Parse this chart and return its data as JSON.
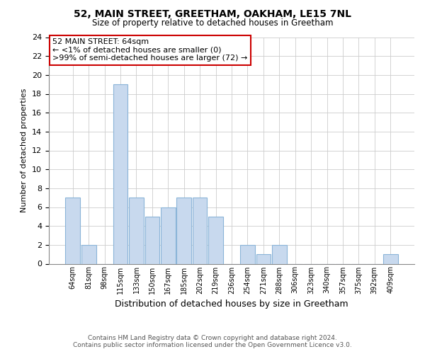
{
  "title": "52, MAIN STREET, GREETHAM, OAKHAM, LE15 7NL",
  "subtitle": "Size of property relative to detached houses in Greetham",
  "xlabel": "Distribution of detached houses by size in Greetham",
  "ylabel": "Number of detached properties",
  "bin_labels": [
    "64sqm",
    "81sqm",
    "98sqm",
    "115sqm",
    "133sqm",
    "150sqm",
    "167sqm",
    "185sqm",
    "202sqm",
    "219sqm",
    "236sqm",
    "254sqm",
    "271sqm",
    "288sqm",
    "306sqm",
    "323sqm",
    "340sqm",
    "357sqm",
    "375sqm",
    "392sqm",
    "409sqm"
  ],
  "bar_heights": [
    7,
    2,
    0,
    19,
    7,
    5,
    6,
    7,
    7,
    5,
    0,
    2,
    1,
    2,
    0,
    0,
    0,
    0,
    0,
    0,
    1
  ],
  "bar_color": "#c8d9ee",
  "bar_edge_color": "#8ab4d8",
  "annotation_box_text": "52 MAIN STREET: 64sqm\n← <1% of detached houses are smaller (0)\n>99% of semi-detached houses are larger (72) →",
  "annotation_box_color": "#ffffff",
  "annotation_box_edge_color": "#cc0000",
  "ylim": [
    0,
    24
  ],
  "yticks": [
    0,
    2,
    4,
    6,
    8,
    10,
    12,
    14,
    16,
    18,
    20,
    22,
    24
  ],
  "footer_line1": "Contains HM Land Registry data © Crown copyright and database right 2024.",
  "footer_line2": "Contains public sector information licensed under the Open Government Licence v3.0.",
  "background_color": "#ffffff",
  "grid_color": "#cccccc"
}
